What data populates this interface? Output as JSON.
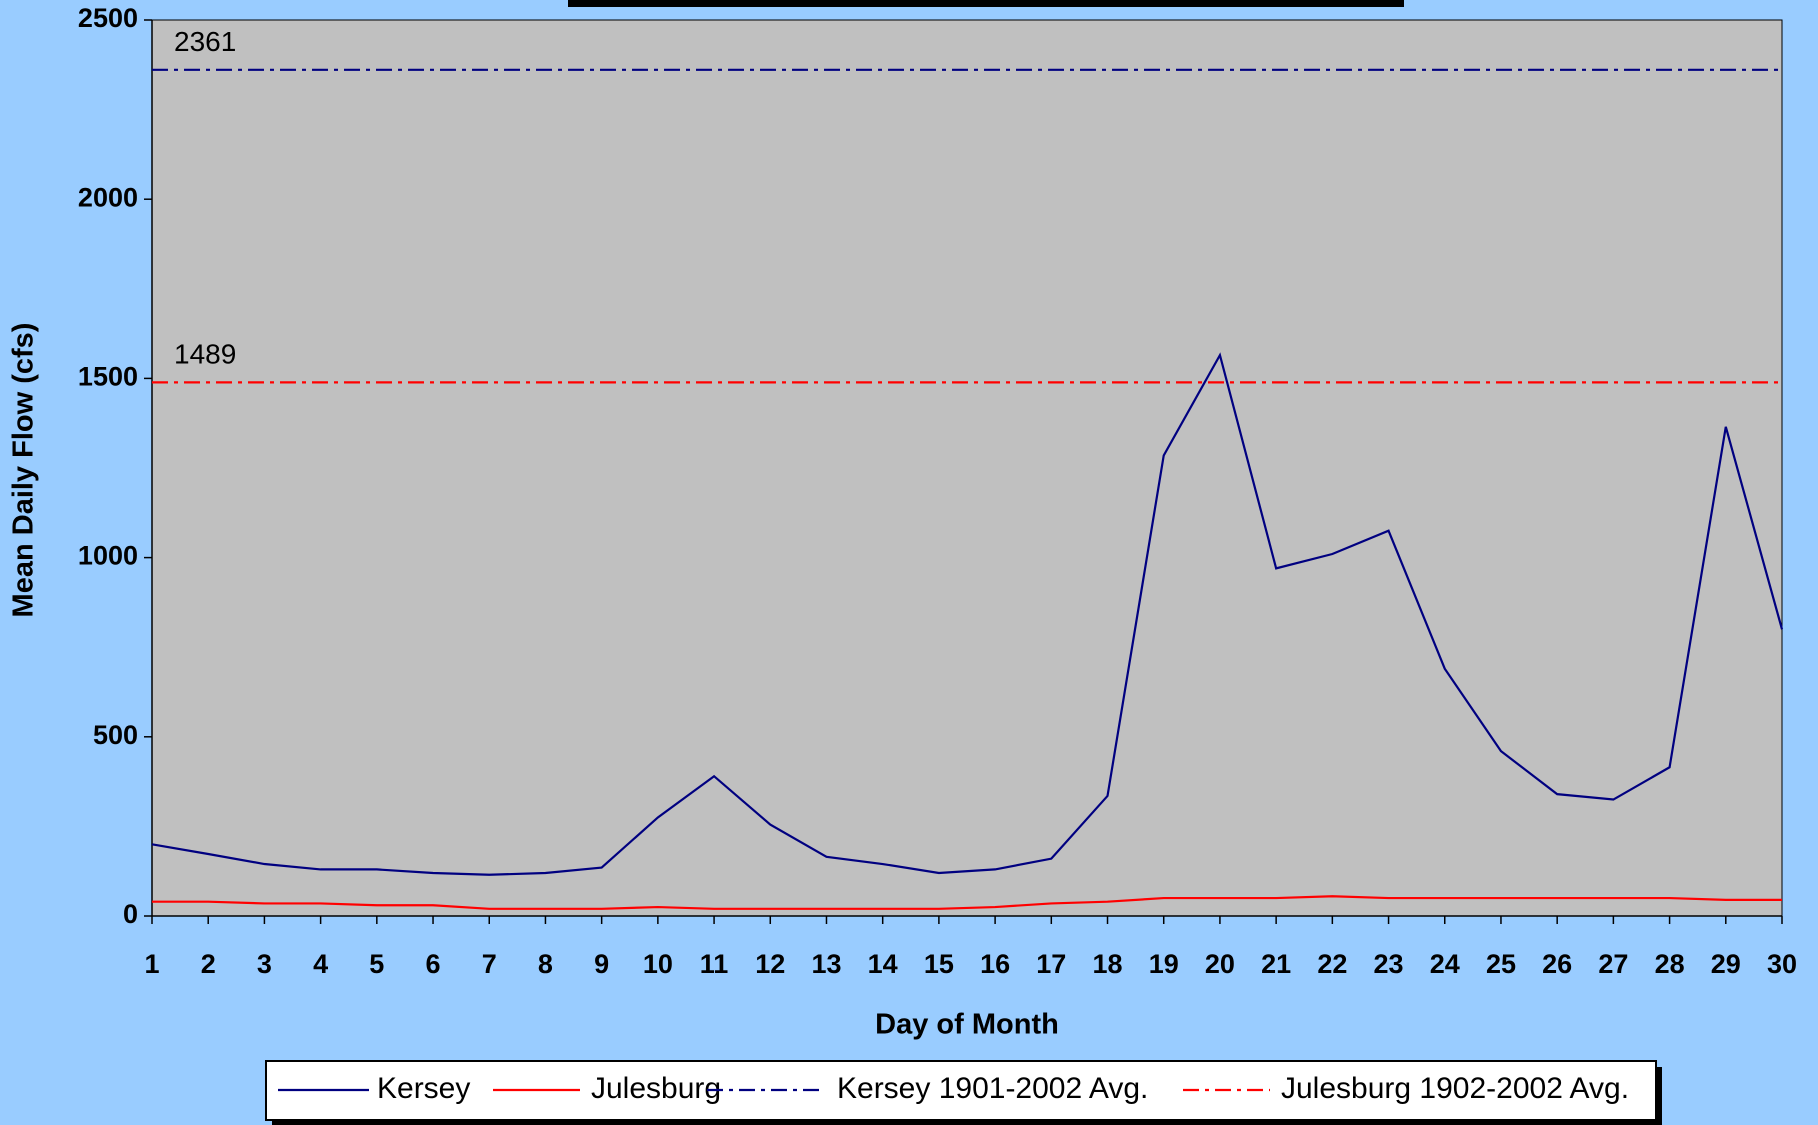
{
  "chart_data": {
    "type": "line",
    "xlabel": "Day of Month",
    "ylabel": "Mean Daily Flow (cfs)",
    "categories": [
      1,
      2,
      3,
      4,
      5,
      6,
      7,
      8,
      9,
      10,
      11,
      12,
      13,
      14,
      15,
      16,
      17,
      18,
      19,
      20,
      21,
      22,
      23,
      24,
      25,
      26,
      27,
      28,
      29,
      30
    ],
    "series": [
      {
        "name": "Kersey",
        "color": "#000080",
        "style": "solid",
        "values": [
          200,
          173,
          145,
          130,
          130,
          120,
          115,
          120,
          135,
          275,
          390,
          255,
          165,
          145,
          120,
          130,
          160,
          335,
          1285,
          1565,
          970,
          1010,
          1075,
          690,
          460,
          340,
          325,
          415,
          1365,
          800
        ]
      },
      {
        "name": "Julesburg",
        "color": "#ff0000",
        "style": "solid",
        "values": [
          40,
          40,
          35,
          35,
          30,
          30,
          20,
          20,
          20,
          25,
          20,
          20,
          20,
          20,
          20,
          25,
          35,
          40,
          50,
          50,
          50,
          55,
          50,
          50,
          50,
          50,
          50,
          50,
          45,
          45
        ]
      },
      {
        "name": "Kersey 1901-2002 Avg.",
        "color": "#000080",
        "style": "dash-dot",
        "values": [
          2361,
          2361,
          2361,
          2361,
          2361,
          2361,
          2361,
          2361,
          2361,
          2361,
          2361,
          2361,
          2361,
          2361,
          2361,
          2361,
          2361,
          2361,
          2361,
          2361,
          2361,
          2361,
          2361,
          2361,
          2361,
          2361,
          2361,
          2361,
          2361,
          2361
        ]
      },
      {
        "name": "Julesburg 1902-2002 Avg.",
        "color": "#ff0000",
        "style": "dash-dot",
        "values": [
          1489,
          1489,
          1489,
          1489,
          1489,
          1489,
          1489,
          1489,
          1489,
          1489,
          1489,
          1489,
          1489,
          1489,
          1489,
          1489,
          1489,
          1489,
          1489,
          1489,
          1489,
          1489,
          1489,
          1489,
          1489,
          1489,
          1489,
          1489,
          1489,
          1489
        ]
      }
    ],
    "ylim": [
      0,
      2500
    ],
    "yticks": [
      0,
      500,
      1000,
      1500,
      2000,
      2500
    ],
    "legend": "bottom",
    "grid": false
  }
}
